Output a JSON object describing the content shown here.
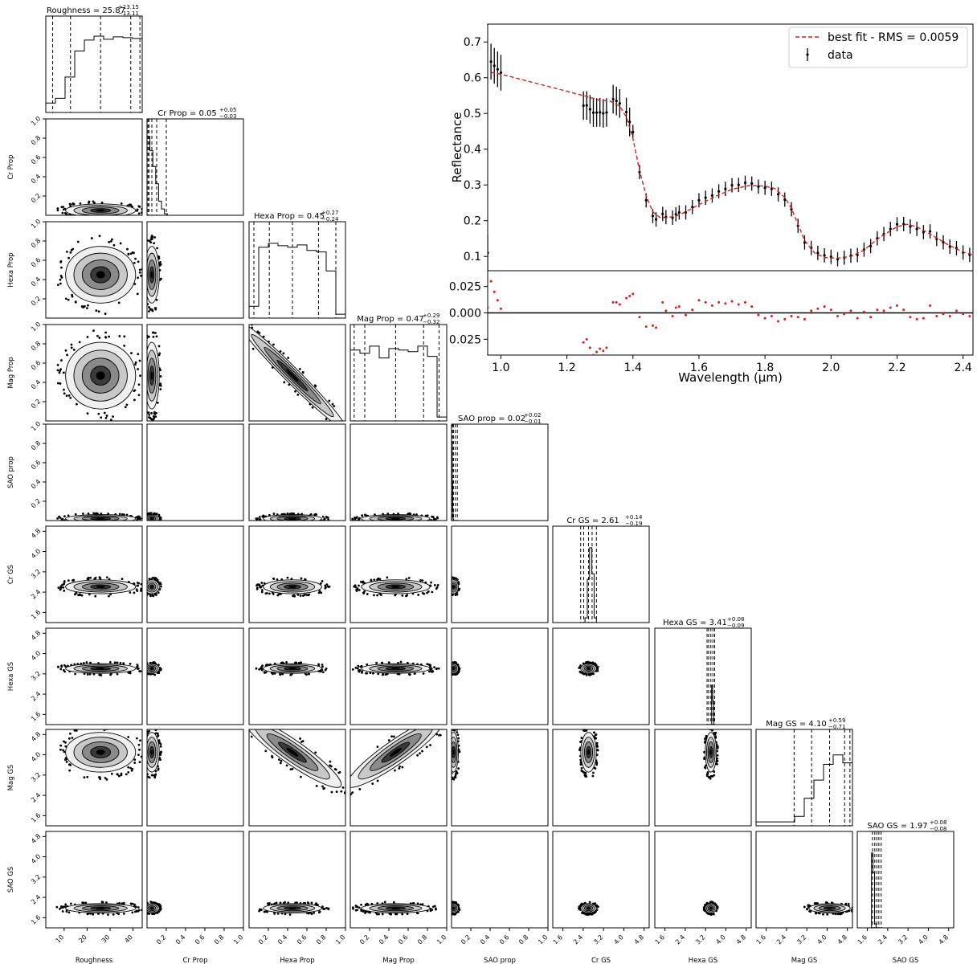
{
  "chart_data": [
    {
      "type": "corner",
      "parameters": [
        "Roughness",
        "Cr Prop",
        "Hexa Prop",
        "Mag Prop",
        "SAO prop",
        "Cr GS",
        "Hexa GS",
        "Mag GS",
        "SAO GS"
      ],
      "titles": [
        {
          "label": "Roughness = 25.87",
          "sup": "+13.15",
          "sub": "−13.11"
        },
        {
          "label": "Cr Prop = 0.05",
          "sup": "+0.05",
          "sub": "−0.03"
        },
        {
          "label": "Hexa Prop = 0.45",
          "sup": "+0.27",
          "sub": "−0.24"
        },
        {
          "label": "Mag Prop = 0.47",
          "sup": "+0.29",
          "sub": "−0.32"
        },
        {
          "label": "SAO prop = 0.02",
          "sup": "+0.02",
          "sub": "−0.01"
        },
        {
          "label": "Cr GS = 2.61",
          "sup": "+0.14",
          "sub": "−0.19"
        },
        {
          "label": "Hexa GS = 3.41",
          "sup": "+0.08",
          "sub": "−0.09"
        },
        {
          "label": "Mag GS = 4.10",
          "sup": "+0.59",
          "sub": "−0.71"
        },
        {
          "label": "SAO GS = 1.97",
          "sup": "+0.08",
          "sub": "−0.08"
        }
      ],
      "ranges": [
        [
          2,
          44
        ],
        [
          0,
          1
        ],
        [
          0,
          1
        ],
        [
          0,
          1
        ],
        [
          0,
          1
        ],
        [
          1.2,
          5
        ],
        [
          1.2,
          5
        ],
        [
          1.2,
          5
        ],
        [
          1.2,
          5
        ]
      ],
      "ticks": [
        [
          "10",
          "20",
          "30",
          "40"
        ],
        [
          "0.2",
          "0.4",
          "0.6",
          "0.8",
          "1.0"
        ],
        [
          "0.2",
          "0.4",
          "0.6",
          "0.8",
          "1.0"
        ],
        [
          "0.2",
          "0.4",
          "0.6",
          "0.8",
          "1.0"
        ],
        [
          "0.2",
          "0.4",
          "0.6",
          "0.8",
          "1.0"
        ],
        [
          "1.6",
          "2.4",
          "3.2",
          "4.0",
          "4.8"
        ],
        [
          "1.6",
          "2.4",
          "3.2",
          "4.0",
          "4.8"
        ],
        [
          "1.6",
          "2.4",
          "3.2",
          "4.0",
          "4.8"
        ],
        [
          "1.6",
          "2.4",
          "3.2",
          "4.0",
          "4.8"
        ]
      ],
      "ytick_labels": {
        "prop": [
          "0.2",
          "0.4",
          "0.6",
          "0.8",
          "1.0"
        ],
        "gs": [
          "1.6",
          "2.4",
          "3.2",
          "4.0",
          "4.8"
        ]
      },
      "marginal_medians": [
        25.87,
        0.05,
        0.45,
        0.47,
        0.02,
        2.61,
        3.41,
        4.1,
        1.97
      ],
      "marginal_quantiles": [
        [
          5,
          12.76,
          25.87,
          39.02,
          43
        ],
        [
          0.01,
          0.02,
          0.05,
          0.1,
          0.2
        ],
        [
          0.05,
          0.21,
          0.45,
          0.72,
          0.9
        ],
        [
          0.04,
          0.15,
          0.47,
          0.76,
          0.92
        ],
        [
          0.004,
          0.01,
          0.02,
          0.04,
          0.06
        ],
        [
          2.3,
          2.42,
          2.61,
          2.75,
          2.92
        ],
        [
          3.26,
          3.32,
          3.41,
          3.49,
          3.56
        ],
        [
          2.7,
          3.39,
          4.1,
          4.69,
          4.9
        ],
        [
          1.8,
          1.89,
          1.97,
          2.05,
          2.14
        ]
      ]
    },
    {
      "type": "line",
      "xlabel": "Wavelength (µm)",
      "ylabel": "Reflectance",
      "xlim": [
        0.96,
        2.43
      ],
      "ylim": [
        0.06,
        0.75
      ],
      "xticks": [
        "1.0",
        "1.2",
        "1.4",
        "1.6",
        "1.8",
        "2.0",
        "2.2",
        "2.4"
      ],
      "yticks": [
        "0.1",
        "0.2",
        "0.3",
        "0.4",
        "0.5",
        "0.6",
        "0.7"
      ],
      "legend": "top-right",
      "legend_labels": {
        "fit": "best fit - RMS = 0.0059",
        "data": "data"
      },
      "series": [
        {
          "name": "best fit - RMS = 0.0059",
          "x": [
            0.97,
            1.0,
            1.05,
            1.1,
            1.15,
            1.2,
            1.25,
            1.3,
            1.33,
            1.36,
            1.38,
            1.4,
            1.42,
            1.44,
            1.46,
            1.48,
            1.5,
            1.53,
            1.56,
            1.6,
            1.65,
            1.7,
            1.75,
            1.8,
            1.83,
            1.86,
            1.88,
            1.9,
            1.92,
            1.95,
            1.98,
            2.02,
            2.06,
            2.1,
            2.15,
            2.2,
            2.23,
            2.26,
            2.3,
            2.35,
            2.4,
            2.43
          ],
          "y": [
            0.615,
            0.61,
            0.598,
            0.586,
            0.574,
            0.562,
            0.55,
            0.537,
            0.535,
            0.52,
            0.49,
            0.43,
            0.34,
            0.27,
            0.225,
            0.21,
            0.208,
            0.213,
            0.225,
            0.245,
            0.268,
            0.288,
            0.298,
            0.297,
            0.29,
            0.265,
            0.235,
            0.19,
            0.145,
            0.11,
            0.097,
            0.095,
            0.1,
            0.118,
            0.155,
            0.183,
            0.19,
            0.183,
            0.163,
            0.135,
            0.112,
            0.105
          ]
        }
      ],
      "residuals": {
        "yticks": [
          "0.025",
          "0.000",
          "0.025"
        ],
        "ylim": [
          -0.04,
          0.04
        ],
        "x": [
          0.96,
          0.97,
          0.98,
          0.99,
          1.0,
          1.25,
          1.26,
          1.27,
          1.28,
          1.29,
          1.3,
          1.31,
          1.32,
          1.34,
          1.35,
          1.36,
          1.38,
          1.39,
          1.4,
          1.42,
          1.44,
          1.46,
          1.47,
          1.49,
          1.5,
          1.52,
          1.53,
          1.54,
          1.56,
          1.58,
          1.6,
          1.62,
          1.64,
          1.66,
          1.68,
          1.7,
          1.72,
          1.74,
          1.76,
          1.78,
          1.8,
          1.82,
          1.84,
          1.86,
          1.88,
          1.9,
          1.92,
          1.94,
          1.96,
          1.98,
          2.0,
          2.02,
          2.04,
          2.06,
          2.08,
          2.1,
          2.12,
          2.14,
          2.16,
          2.18,
          2.2,
          2.22,
          2.24,
          2.26,
          2.28,
          2.3,
          2.32,
          2.34,
          2.36,
          2.38,
          2.4,
          2.42
        ],
        "y": [
          0.005,
          0.03,
          0.02,
          0.012,
          0.004,
          -0.028,
          -0.025,
          -0.033,
          -0.04,
          -0.037,
          -0.034,
          -0.036,
          -0.033,
          0.01,
          0.01,
          0.008,
          0.014,
          0.016,
          0.018,
          -0.004,
          -0.013,
          -0.012,
          -0.014,
          0.01,
          0.002,
          -0.003,
          0.005,
          0.006,
          -0.002,
          0.003,
          0.012,
          0.01,
          0.007,
          0.01,
          0.009,
          0.011,
          0.008,
          0.01,
          0.006,
          -0.002,
          -0.005,
          -0.003,
          -0.008,
          -0.006,
          -0.003,
          -0.004,
          -0.006,
          0.002,
          0.004,
          0.006,
          0.003,
          -0.003,
          -0.001,
          0.002,
          -0.005,
          0.001,
          -0.004,
          0.003,
          0.002,
          0.005,
          0.007,
          0.003,
          -0.004,
          -0.006,
          -0.005,
          0.007,
          -0.003,
          -0.001,
          -0.003,
          0.002,
          -0.001,
          -0.003
        ]
      }
    }
  ]
}
